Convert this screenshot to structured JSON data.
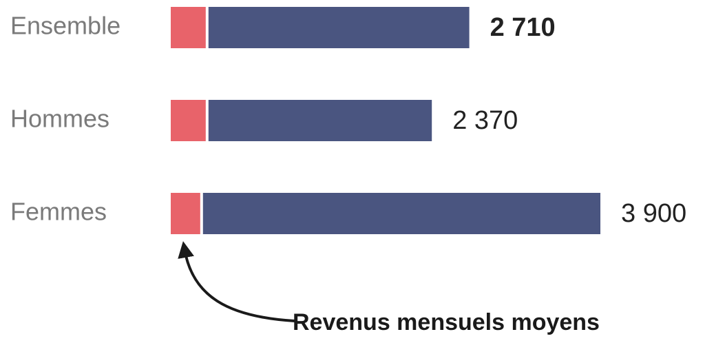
{
  "chart_data": {
    "type": "stacked-bar-horizontal",
    "categories": [
      "Ensemble",
      "Hommes",
      "Femmes"
    ],
    "series": [
      {
        "color": "#e8636a",
        "values": [
          330,
          330,
          280
        ]
      },
      {
        "color": "#4a5580",
        "values": [
          2380,
          2040,
          3620
        ]
      }
    ],
    "totals": [
      2710,
      2370,
      3900
    ],
    "total_labels": [
      "2 710",
      "2 370",
      "3 900"
    ],
    "annotation": "Revenus mensuels moyens"
  }
}
